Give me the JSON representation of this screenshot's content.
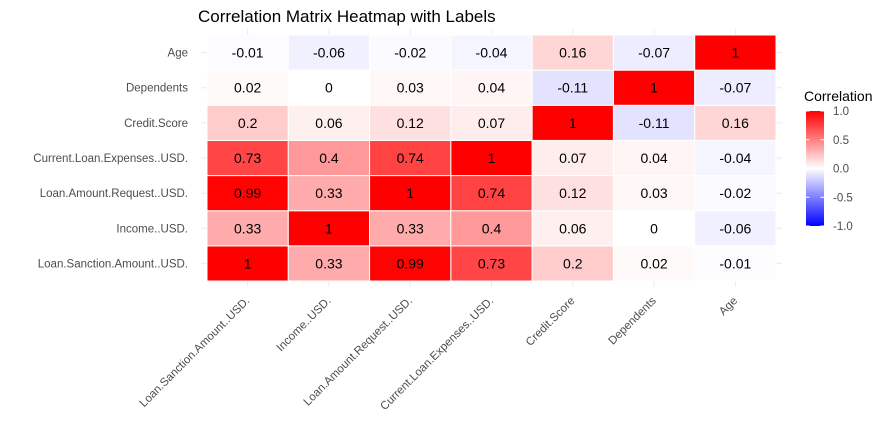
{
  "chart_data": {
    "type": "heatmap",
    "title": "Correlation Matrix Heatmap with Labels",
    "xlabel": "",
    "ylabel": "",
    "x_categories": [
      "Loan.Sanction.Amount..USD.",
      "Income..USD.",
      "Loan.Amount.Request..USD.",
      "Current.Loan.Expenses..USD.",
      "Credit.Score",
      "Dependents",
      "Age"
    ],
    "y_categories": [
      "Loan.Sanction.Amount..USD.",
      "Income..USD.",
      "Loan.Amount.Request..USD.",
      "Current.Loan.Expenses..USD.",
      "Credit.Score",
      "Dependents",
      "Age"
    ],
    "values": [
      [
        1,
        0.33,
        0.99,
        0.73,
        0.2,
        0.02,
        -0.01
      ],
      [
        0.33,
        1,
        0.33,
        0.4,
        0.06,
        0,
        -0.06
      ],
      [
        0.99,
        0.33,
        1,
        0.74,
        0.12,
        0.03,
        -0.02
      ],
      [
        0.73,
        0.4,
        0.74,
        1,
        0.07,
        0.04,
        -0.04
      ],
      [
        0.2,
        0.06,
        0.12,
        0.07,
        1,
        -0.11,
        0.16
      ],
      [
        0.02,
        0,
        0.03,
        0.04,
        -0.11,
        1,
        -0.07
      ],
      [
        -0.01,
        -0.06,
        -0.02,
        -0.04,
        0.16,
        -0.07,
        1
      ]
    ],
    "value_range": [
      -1,
      1
    ],
    "legend": {
      "title": "Correlation",
      "ticks": [
        "1.0",
        "0.5",
        "0.0",
        "-0.5",
        "-1.0"
      ],
      "tick_values": [
        1,
        0.5,
        0,
        -0.5,
        -1
      ],
      "position": "right"
    },
    "colors": {
      "low": "#0000ff",
      "mid": "#ffffff",
      "high": "#ff0000"
    },
    "grid": true
  }
}
